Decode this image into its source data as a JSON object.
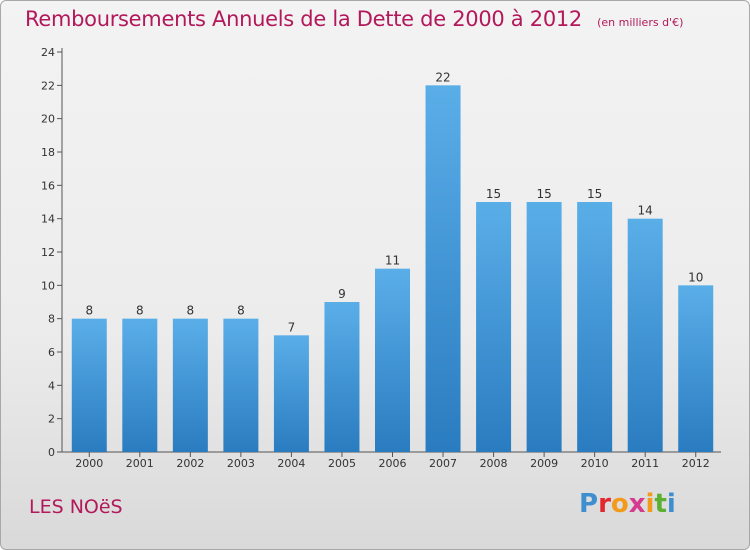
{
  "header": {
    "title": "Remboursements Annuels de la Dette de 2000 à 2012",
    "subtitle": "(en milliers d'€)"
  },
  "footer": {
    "commune": "LES NOëS",
    "logo": {
      "text": "Proxiti",
      "letters": [
        {
          "ch": "P",
          "color": "#3f8fd0"
        },
        {
          "ch": "r",
          "color": "#e3272f"
        },
        {
          "ch": "o",
          "color": "#f39a1c"
        },
        {
          "ch": "x",
          "color": "#d63a8f"
        },
        {
          "ch": "i",
          "color": "#f39a1c"
        },
        {
          "ch": "t",
          "color": "#5bb031"
        },
        {
          "ch": "i",
          "color": "#3f8fd0"
        }
      ]
    }
  },
  "colors": {
    "bar_light": "#5aaee8",
    "bar_dark": "#2a7cc0",
    "title": "#b2185a"
  },
  "chart_data": {
    "type": "bar",
    "categories": [
      "2000",
      "2001",
      "2002",
      "2003",
      "2004",
      "2005",
      "2006",
      "2007",
      "2008",
      "2009",
      "2010",
      "2011",
      "2012"
    ],
    "values": [
      8,
      8,
      8,
      8,
      7,
      9,
      11,
      22,
      15,
      15,
      15,
      14,
      10
    ],
    "ylim": [
      0,
      24
    ],
    "yticks": [
      0,
      2,
      4,
      6,
      8,
      10,
      12,
      14,
      16,
      18,
      20,
      22,
      24
    ],
    "grid": false,
    "legend": "none",
    "data_labels": true
  }
}
